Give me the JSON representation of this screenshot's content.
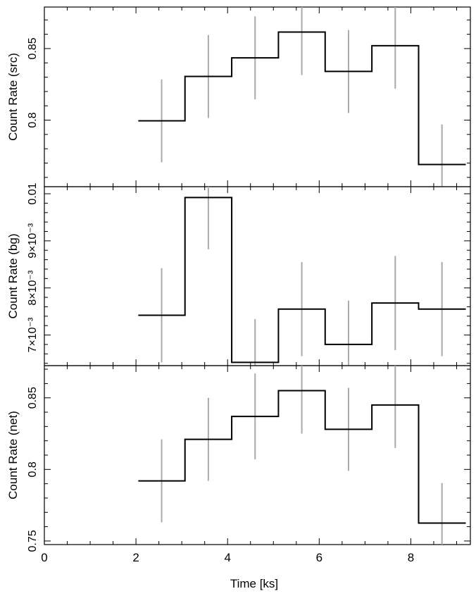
{
  "colors": {
    "step": "#000000",
    "errorbar": "#aaaaaa",
    "axis": "#000000"
  },
  "chart_data": [
    {
      "type": "line",
      "style": "step",
      "ylabel": "Count Rate (src)",
      "xlim": [
        0,
        9.3
      ],
      "ylim": [
        0.7535,
        0.879
      ],
      "yticks": [
        0.8,
        0.85
      ],
      "ytick_labels": [
        "0.8",
        "0.85"
      ],
      "yminor_step": 0.01,
      "series": [
        {
          "x_edges": [
            2.05,
            3.07,
            4.09,
            5.11,
            6.13,
            7.15,
            8.17,
            9.2
          ],
          "x_centers": [
            2.56,
            3.58,
            4.6,
            5.62,
            6.64,
            7.66,
            8.68
          ],
          "values": [
            0.7995,
            0.8305,
            0.8435,
            0.8615,
            0.834,
            0.852,
            0.769
          ],
          "errors": [
            0.029,
            0.029,
            0.029,
            0.03,
            0.029,
            0.03,
            0.028
          ]
        }
      ]
    },
    {
      "type": "line",
      "style": "step",
      "ylabel": "Count Rate (bg)",
      "xlim": [
        0,
        9.3
      ],
      "ylim": [
        0.00635,
        0.01015
      ],
      "yticks": [
        0.007,
        0.008,
        0.009,
        0.01
      ],
      "ytick_labels": [
        "7×10⁻³",
        "8×10⁻³",
        "9×10⁻³",
        "0.01"
      ],
      "yminor_step": 0.0002,
      "series": [
        {
          "x_edges": [
            2.05,
            3.07,
            4.09,
            5.11,
            6.13,
            7.15,
            8.17,
            9.2
          ],
          "x_centers": [
            2.56,
            3.58,
            4.6,
            5.62,
            6.64,
            7.66,
            8.68
          ],
          "values": [
            0.00742,
            0.00992,
            0.00642,
            0.00755,
            0.0068,
            0.00768,
            0.00755
          ],
          "errors": [
            0.001,
            0.0011,
            0.00092,
            0.001,
            0.00093,
            0.001,
            0.001
          ]
        }
      ]
    },
    {
      "type": "line",
      "style": "step",
      "xlabel": "Time [ks]",
      "ylabel": "Count Rate (net)",
      "xlim": [
        0,
        9.3
      ],
      "xticks": [
        0,
        2,
        4,
        6,
        8
      ],
      "xtick_labels": [
        "0",
        "2",
        "4",
        "6",
        "8"
      ],
      "xminor_step": 0.5,
      "ylim": [
        0.7475,
        0.8725
      ],
      "yticks": [
        0.75,
        0.8,
        0.85
      ],
      "ytick_labels": [
        "0.75",
        "0.8",
        "0.85"
      ],
      "yminor_step": 0.01,
      "series": [
        {
          "x_edges": [
            2.05,
            3.07,
            4.09,
            5.11,
            6.13,
            7.15,
            8.17,
            9.2
          ],
          "x_centers": [
            2.56,
            3.58,
            4.6,
            5.62,
            6.64,
            7.66,
            8.68
          ],
          "values": [
            0.792,
            0.821,
            0.837,
            0.855,
            0.828,
            0.845,
            0.7625
          ],
          "errors": [
            0.029,
            0.029,
            0.03,
            0.03,
            0.029,
            0.03,
            0.028
          ]
        }
      ]
    }
  ]
}
